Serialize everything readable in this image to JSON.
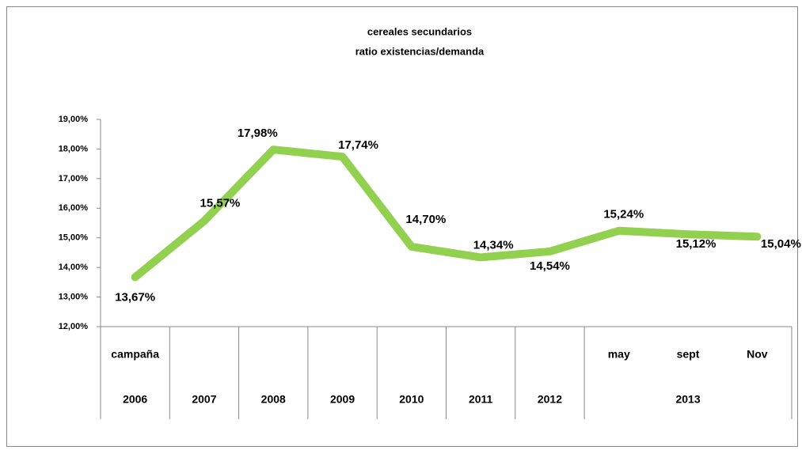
{
  "chart_data": {
    "type": "line",
    "title": "cereales secundarios",
    "subtitle": "ratio existencias/demanda",
    "categories": [
      "campaña",
      null,
      null,
      null,
      null,
      null,
      null,
      "may",
      "sept",
      "Nov"
    ],
    "category_groups": [
      {
        "label": "2006",
        "span": 1
      },
      {
        "label": "2007",
        "span": 1
      },
      {
        "label": "2008",
        "span": 1
      },
      {
        "label": "2009",
        "span": 1
      },
      {
        "label": "2010",
        "span": 1
      },
      {
        "label": "2011",
        "span": 1
      },
      {
        "label": "2012",
        "span": 1
      },
      {
        "label": "2013",
        "span": 3
      }
    ],
    "series": [
      {
        "name": "ratio existencias/demanda",
        "color": "#92d050",
        "values": [
          13.67,
          15.57,
          17.98,
          17.74,
          14.7,
          14.34,
          14.54,
          15.24,
          15.12,
          15.04
        ],
        "value_labels": [
          "13,67%",
          "15,57%",
          "17,98%",
          "17,74%",
          "14,70%",
          "14,34%",
          "14,54%",
          "15,24%",
          "15,12%",
          "15,04%"
        ]
      }
    ],
    "ylim": [
      12,
      19
    ],
    "yticks": [
      {
        "value": 12,
        "label": "12,00%"
      },
      {
        "value": 13,
        "label": "13,00%"
      },
      {
        "value": 14,
        "label": "14,00%"
      },
      {
        "value": 15,
        "label": "15,00%"
      },
      {
        "value": 16,
        "label": "16,00%"
      },
      {
        "value": 17,
        "label": "17,00%"
      },
      {
        "value": 18,
        "label": "18,00%"
      },
      {
        "value": 19,
        "label": "19,00%"
      }
    ],
    "grid": false
  }
}
